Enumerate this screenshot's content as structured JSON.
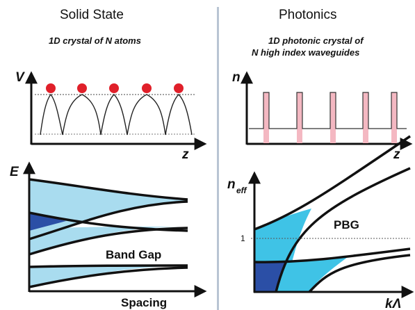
{
  "left_panel": {
    "title": "Solid State",
    "subtitle": "1D crystal of N atoms",
    "potential_plot": {
      "y_label": "V",
      "x_label": "z"
    },
    "band_plot": {
      "y_label": "E",
      "x_label": "Spacing",
      "gap_label": "Band Gap"
    }
  },
  "right_panel": {
    "title": "Photonics",
    "subtitle_line1": "1D photonic crystal of",
    "subtitle_line2": "N high index waveguides",
    "index_plot": {
      "y_label": "n",
      "x_label": "z"
    },
    "dispersion_plot": {
      "y_label": "n",
      "y_label_sub": "eff",
      "x_label": "kΛ",
      "tick_label": "1",
      "gap_label": "PBG"
    }
  },
  "colors": {
    "atom": "#e0202a",
    "band_light": "#a9dcef",
    "band_dark": "#2b4fa6",
    "photonic_cyan": "#3fc3e6",
    "waveguide_pink": "#f4b8c2",
    "divider": "#b9c4d3"
  }
}
